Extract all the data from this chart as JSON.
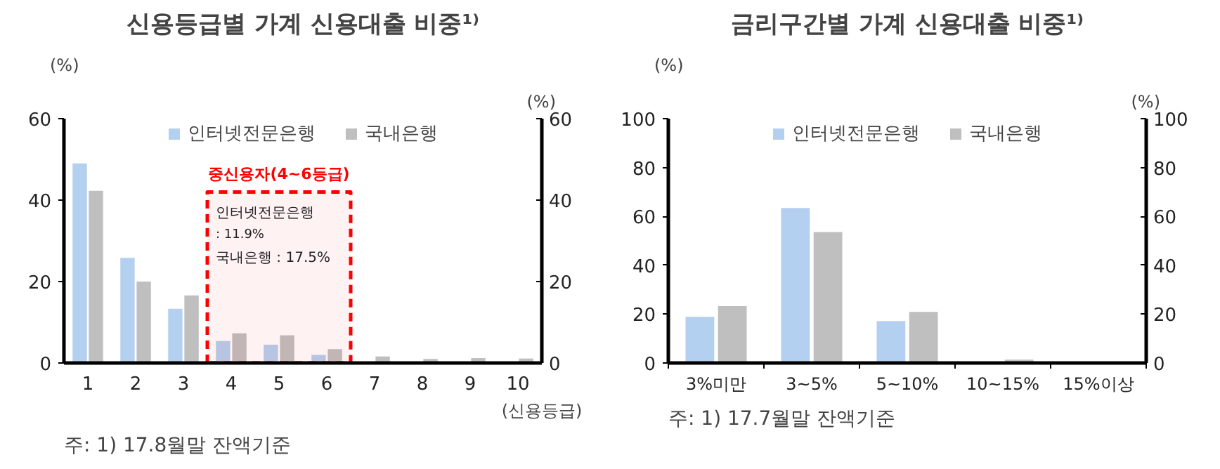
{
  "chart_data": [
    {
      "type": "bar",
      "title": "신용등급별 가계 신용대출 비중¹⁾",
      "xlabel": "(신용등급)",
      "ylabel": "(%)",
      "y2label": "(%)",
      "x": [
        1,
        2,
        3,
        4,
        5,
        6,
        7,
        8,
        9,
        10
      ],
      "xlim": [
        0.5,
        10.5
      ],
      "xticks": [
        1,
        2,
        3,
        4,
        5,
        6,
        7,
        8,
        9,
        10
      ],
      "ylim": [
        0,
        60
      ],
      "yticks": [
        0,
        20,
        40,
        60
      ],
      "y2lim": [
        0,
        60
      ],
      "y2ticks": [
        0,
        20,
        40,
        60
      ],
      "series": [
        {
          "name": "인터넷전문은행",
          "color": "#b4d0f0",
          "values": [
            49,
            25.8,
            13.3,
            5.4,
            4.5,
            2.0,
            0,
            0,
            0,
            0
          ]
        },
        {
          "name": "국내은행",
          "color": "#bfbfbf",
          "values": [
            42.3,
            20,
            16.6,
            7.3,
            6.8,
            3.4,
            1.6,
            1.0,
            1.2,
            1.1
          ]
        }
      ],
      "bands": [
        {
          "axis": "x",
          "from": 3.5,
          "to": 6.5,
          "label": "중신용자(4~6등급)",
          "color": "#ff0000"
        }
      ],
      "annotations": [
        "인터넷전문은행",
        ": 11.9%",
        "국내은행 : 17.5%",
        "주: 1) 17.8월말 잔액기준"
      ],
      "legend": "top",
      "grid": false
    },
    {
      "type": "bar",
      "title": "금리구간별 가계 신용대출 비중¹⁾",
      "ylabel": "(%)",
      "y2label": "(%)",
      "categories": [
        "3%미만",
        "3~5%",
        "5~10%",
        "10~15%",
        "15%이상"
      ],
      "ylim": [
        0,
        100
      ],
      "yticks": [
        0,
        20,
        40,
        60,
        80,
        100
      ],
      "y2lim": [
        0,
        100
      ],
      "y2ticks": [
        0,
        20,
        40,
        60,
        80,
        100
      ],
      "series": [
        {
          "name": "인터넷전문은행",
          "color": "#b4d0f0",
          "values": [
            18.9,
            63.4,
            17.2,
            0,
            0
          ]
        },
        {
          "name": "국내은행",
          "color": "#bfbfbf",
          "values": [
            23.3,
            53.6,
            20.9,
            1.4,
            0
          ]
        }
      ],
      "annotations": [
        "주: 1) 17.7월말 잔액기준"
      ],
      "legend": "top",
      "grid": false
    }
  ]
}
